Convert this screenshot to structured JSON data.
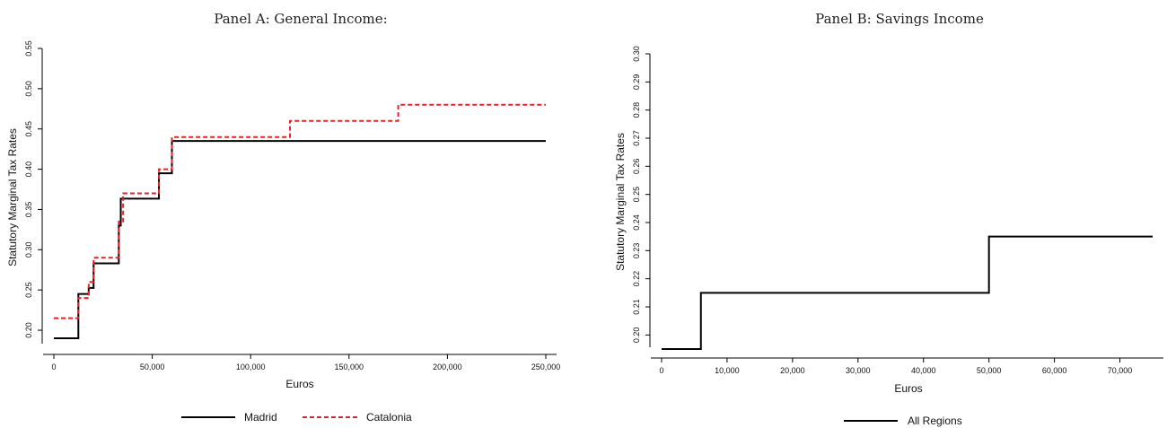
{
  "chart_data": [
    {
      "type": "line",
      "title": "Panel A: General Income:",
      "xlabel": "Euros",
      "ylabel": "Statutory Marginal Tax Rates",
      "xlim": [
        0,
        250000
      ],
      "ylim": [
        0.19,
        0.55
      ],
      "xticks": [
        0,
        50000,
        100000,
        150000,
        200000,
        250000
      ],
      "xtick_labels": [
        "0",
        "50,000",
        "100,000",
        "150,000",
        "200,000",
        "250,000"
      ],
      "yticks": [
        0.2,
        0.25,
        0.3,
        0.35,
        0.4,
        0.45,
        0.5,
        0.55
      ],
      "ytick_labels": [
        "0.20",
        "0.25",
        "0.30",
        "0.35",
        "0.40",
        "0.45",
        "0.50",
        "0.55"
      ],
      "legend_position": "bottom",
      "series": [
        {
          "name": "Madrid",
          "color": "#000000",
          "dash": "solid",
          "step_x": [
            0,
            12450,
            17707,
            20200,
            33007,
            34000,
            53407,
            60000,
            250000
          ],
          "step_y": [
            0.19,
            0.245,
            0.2525,
            0.283,
            0.33,
            0.3635,
            0.395,
            0.435
          ]
        },
        {
          "name": "Catalonia",
          "color": "#e8202a",
          "dash": "dashed",
          "step_x": [
            0,
            12450,
            17707,
            20200,
            33007,
            35200,
            53407,
            60000,
            120000,
            175000,
            250000
          ],
          "step_y": [
            0.215,
            0.24,
            0.26,
            0.29,
            0.335,
            0.37,
            0.4,
            0.44,
            0.46,
            0.48
          ]
        }
      ]
    },
    {
      "type": "line",
      "title": "Panel B: Savings Income",
      "xlabel": "Euros",
      "ylabel": "Statutory Marginal Tax Rates",
      "xlim": [
        0,
        75000
      ],
      "ylim": [
        0.195,
        0.3
      ],
      "xticks": [
        0,
        10000,
        20000,
        30000,
        40000,
        50000,
        60000,
        70000
      ],
      "xtick_labels": [
        "0",
        "10,000",
        "20,000",
        "30,000",
        "40,000",
        "50,000",
        "60,000",
        "70,000"
      ],
      "yticks": [
        0.2,
        0.21,
        0.22,
        0.23,
        0.24,
        0.25,
        0.26,
        0.27,
        0.28,
        0.29,
        0.3
      ],
      "ytick_labels": [
        "0.20",
        "0.21",
        "0.22",
        "0.23",
        "0.24",
        "0.25",
        "0.26",
        "0.27",
        "0.28",
        "0.29",
        "0.30"
      ],
      "legend_position": "bottom",
      "series": [
        {
          "name": "All Regions",
          "color": "#000000",
          "dash": "solid",
          "step_x": [
            0,
            6000,
            50000,
            75000
          ],
          "step_y": [
            0.195,
            0.215,
            0.235
          ]
        }
      ]
    }
  ]
}
